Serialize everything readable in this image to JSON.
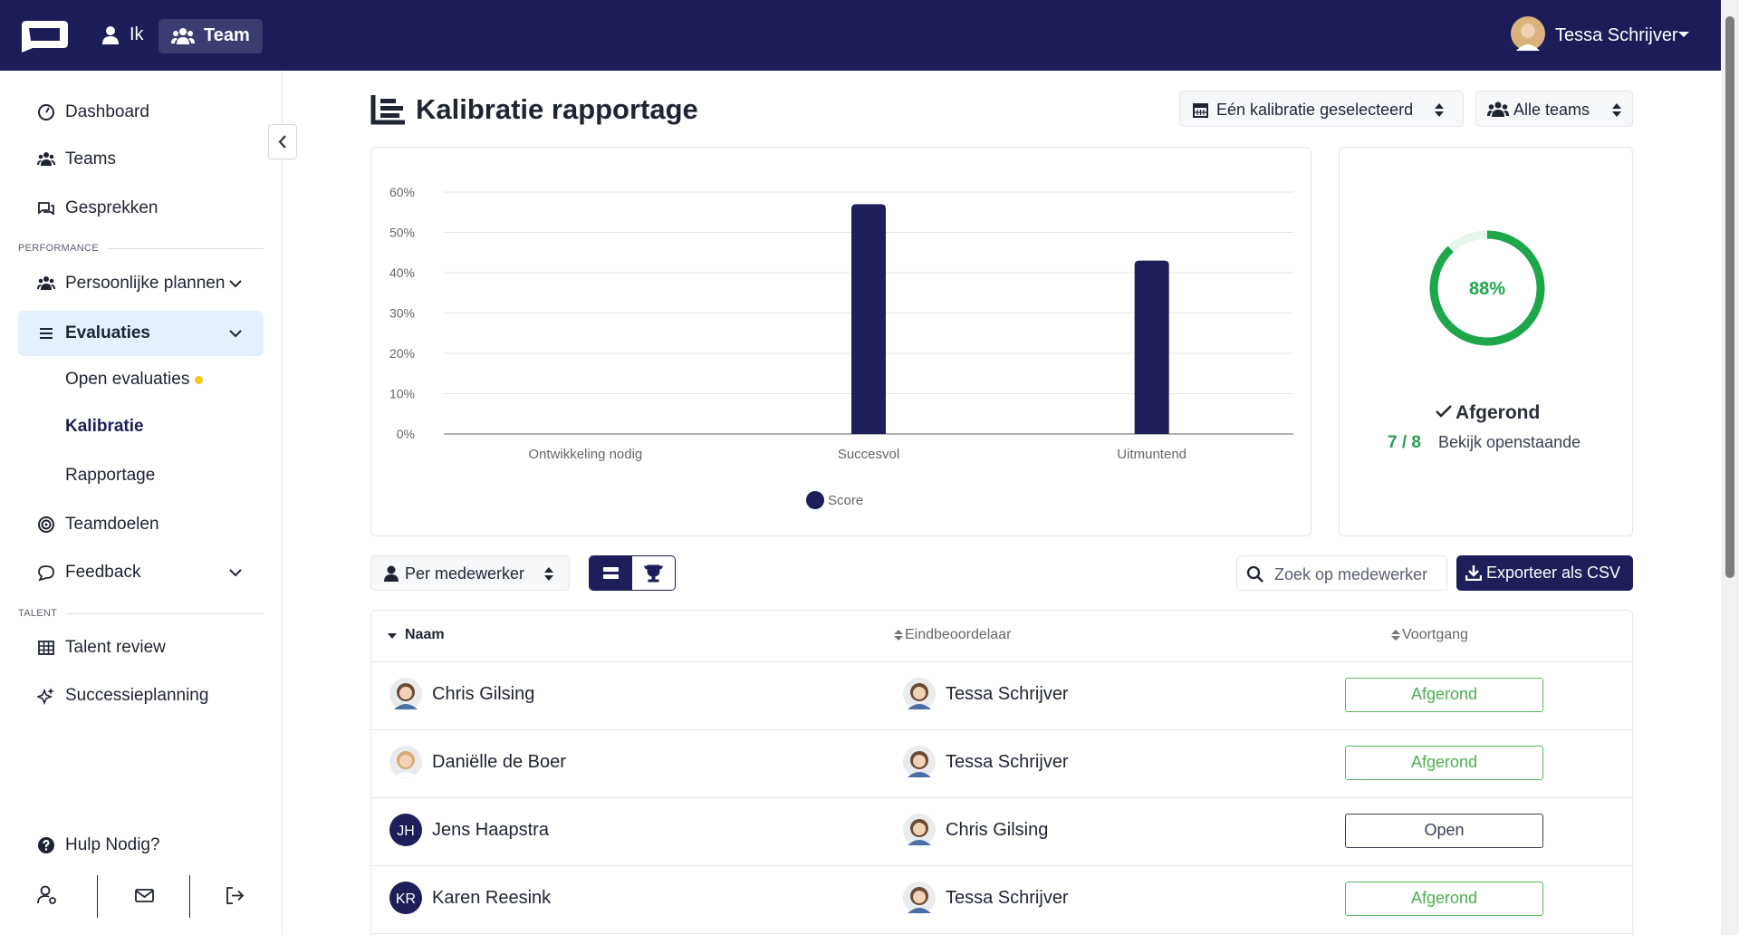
{
  "topbar": {
    "nav": [
      "Ik",
      "Team"
    ],
    "user": "Tessa Schrijver"
  },
  "sidebar": {
    "main": [
      "Dashboard",
      "Teams",
      "Gesprekken"
    ],
    "performance": {
      "heading": "PERFORMANCE",
      "items": [
        "Persoonlijke plannen",
        "Evaluaties",
        "Open evaluaties",
        "Kalibratie",
        "Rapportage",
        "Teamdoelen",
        "Feedback"
      ]
    },
    "talent": {
      "heading": "TALENT",
      "items": [
        "Talent review",
        "Successieplanning"
      ]
    },
    "help": "Hulp Nodig?"
  },
  "header": {
    "title": "Kalibratie rapportage",
    "filters": [
      "Eén kalibratie geselecteerd",
      "Alle teams"
    ]
  },
  "chart_data": {
    "type": "bar",
    "categories": [
      "Ontwikkeling nodig",
      "Succesvol",
      "Uitmuntend"
    ],
    "series": [
      {
        "name": "Score",
        "color": "#1e1f5a",
        "values": [
          0,
          57,
          43
        ]
      }
    ],
    "ylim": [
      0,
      60
    ],
    "yticks": [
      {
        "value": 0,
        "label": "0%"
      },
      {
        "value": 10,
        "label": "10%"
      },
      {
        "value": 20,
        "label": "20%"
      },
      {
        "value": 30,
        "label": "30%"
      },
      {
        "value": 40,
        "label": "40%"
      },
      {
        "value": 50,
        "label": "50%"
      },
      {
        "value": 60,
        "label": "60%"
      }
    ],
    "grid": true,
    "legend": "bottom"
  },
  "summary": {
    "progress": {
      "value": 88,
      "label": "88%"
    },
    "status": "Afgerond",
    "count": "7 / 8",
    "link": "Bekijk openstaande"
  },
  "toolbar": {
    "view": "Per medewerker",
    "search_placeholder": "Zoek op medewerker",
    "export": "Exporteer als CSV"
  },
  "table": {
    "columns": [
      "Naam",
      "Eindbeoordelaar",
      "Voortgang"
    ],
    "rows": [
      {
        "name": "Chris Gilsing",
        "evaluator": "Tessa Schrijver",
        "status": "Afgerond"
      },
      {
        "name": "Daniëlle de Boer",
        "evaluator": "Tessa Schrijver",
        "status": "Afgerond"
      },
      {
        "name": "Jens Haapstra",
        "initials": "JH",
        "evaluator": "Chris Gilsing",
        "status": "Open"
      },
      {
        "name": "Karen Reesink",
        "initials": "KR",
        "evaluator": "Tessa Schrijver",
        "status": "Afgerond"
      }
    ]
  }
}
